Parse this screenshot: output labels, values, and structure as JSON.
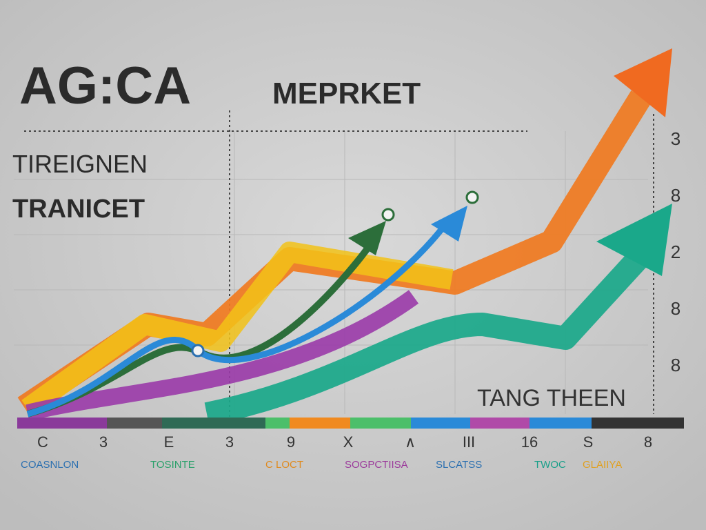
{
  "header": {
    "title": "AG:CA",
    "title_suffix": "MEPRKET",
    "subtitle_lines": [
      "TIREIGNEN",
      "TRANICET"
    ]
  },
  "annotation": "TANG THEEN",
  "right_labels": [
    "3",
    "8",
    "2",
    "8",
    "8"
  ],
  "bottom_labels": [
    "C",
    "3",
    "E",
    "3",
    "9",
    "X",
    "∧",
    "III",
    "16",
    "S",
    "8"
  ],
  "legend": [
    {
      "label": "COASNLON",
      "color": "#2a6fb0"
    },
    {
      "label": "TOSINTE",
      "color": "#2aa06a"
    },
    {
      "label": "C LOCT",
      "color": "#e08a1e"
    },
    {
      "label": "SOGPCTIISA",
      "color": "#9b3a9b"
    },
    {
      "label": "SLCATSS",
      "color": "#2a6fb0"
    },
    {
      "label": "TWOC",
      "color": "#1aa08a"
    },
    {
      "label": "GLAIIYA",
      "color": "#e0a020"
    }
  ]
}
